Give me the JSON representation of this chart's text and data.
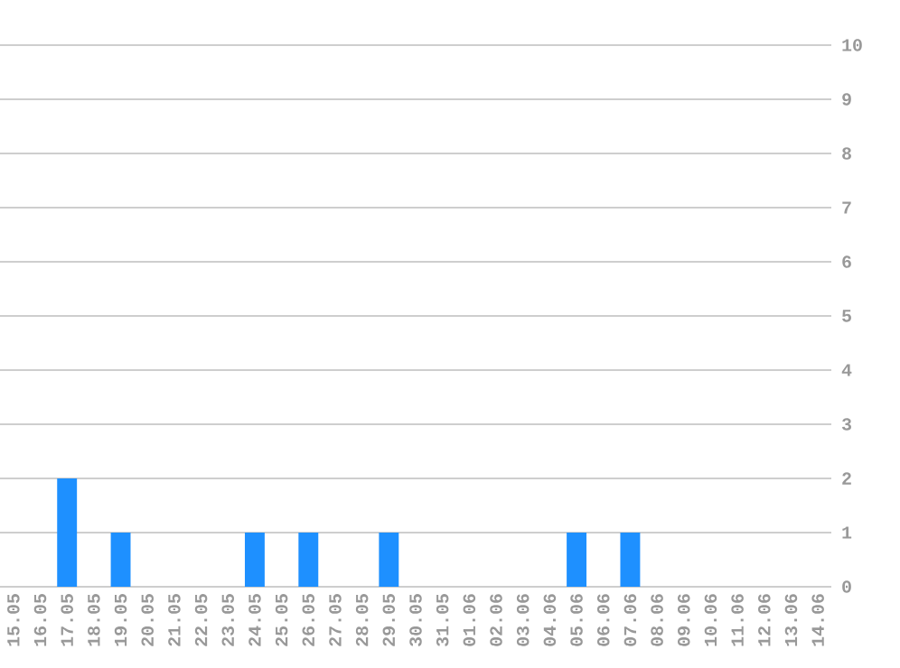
{
  "chart_data": {
    "type": "bar",
    "categories": [
      "15.05",
      "16.05",
      "17.05",
      "18.05",
      "19.05",
      "20.05",
      "21.05",
      "22.05",
      "23.05",
      "24.05",
      "25.05",
      "26.05",
      "27.05",
      "28.05",
      "29.05",
      "30.05",
      "31.05",
      "01.06",
      "02.06",
      "03.06",
      "04.06",
      "05.06",
      "06.06",
      "07.06",
      "08.06",
      "09.06",
      "10.06",
      "11.06",
      "12.06",
      "13.06",
      "14.06"
    ],
    "values": [
      0,
      0,
      2,
      0,
      1,
      0,
      0,
      0,
      0,
      1,
      0,
      1,
      0,
      0,
      1,
      0,
      0,
      0,
      0,
      0,
      0,
      1,
      0,
      1,
      0,
      0,
      0,
      0,
      0,
      0,
      0
    ],
    "color": "#1e90ff",
    "ylim": [
      0,
      10
    ],
    "yticks": [
      0,
      1,
      2,
      3,
      4,
      5,
      6,
      7,
      8,
      9,
      10
    ],
    "grid": "y"
  }
}
